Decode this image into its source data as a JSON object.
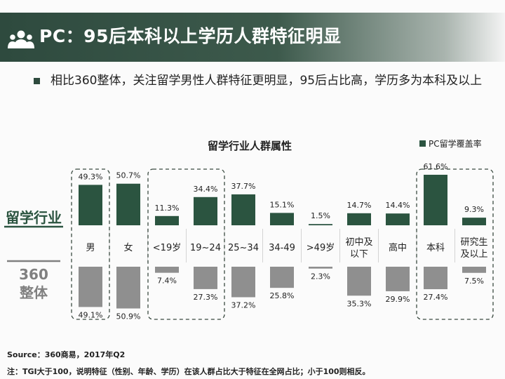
{
  "header": {
    "title": "PC：95后本科以上学历人群特征明显"
  },
  "bullet": {
    "text": "相比360整体，关注留学男性人群特征更明显，95后占比高，学历多为本科及以上"
  },
  "colors": {
    "header_bg": "#2e4a3e",
    "industry_bar": "#2b5440",
    "overall_bar": "#8f8f8f",
    "overall_label": "#808080"
  },
  "chart_data": {
    "type": "bar",
    "title": "留学行业人群属性",
    "legend": {
      "label": "PC留学覆盖率",
      "position": "top-right"
    },
    "categories": [
      [
        "男"
      ],
      [
        "女"
      ],
      [
        "<19岁"
      ],
      [
        "19~24"
      ],
      [
        "25~34"
      ],
      [
        "34-49"
      ],
      [
        ">49岁"
      ],
      [
        "初中及",
        "以下"
      ],
      [
        "高中"
      ],
      [
        "本科"
      ],
      [
        "研究生",
        "及以上"
      ]
    ],
    "series": [
      {
        "name": "留学行业",
        "values": [
          49.3,
          50.7,
          11.3,
          34.4,
          37.7,
          15.1,
          1.5,
          14.7,
          14.4,
          61.6,
          9.3
        ]
      },
      {
        "name": "360整体",
        "values": [
          49.1,
          50.9,
          7.4,
          27.3,
          37.2,
          25.8,
          2.3,
          35.3,
          29.9,
          27.4,
          7.5
        ]
      }
    ],
    "ylim": [
      0,
      65
    ],
    "highlight_groups": [
      [
        0,
        0
      ],
      [
        2,
        3
      ],
      [
        9,
        10
      ]
    ]
  },
  "footer": {
    "source": "Source：360商易，2017年Q2",
    "note": "注：TGI大于100，说明特征（性别、年龄、学历）在该人群占比大于特征在全网占比；小于100则相反。"
  }
}
